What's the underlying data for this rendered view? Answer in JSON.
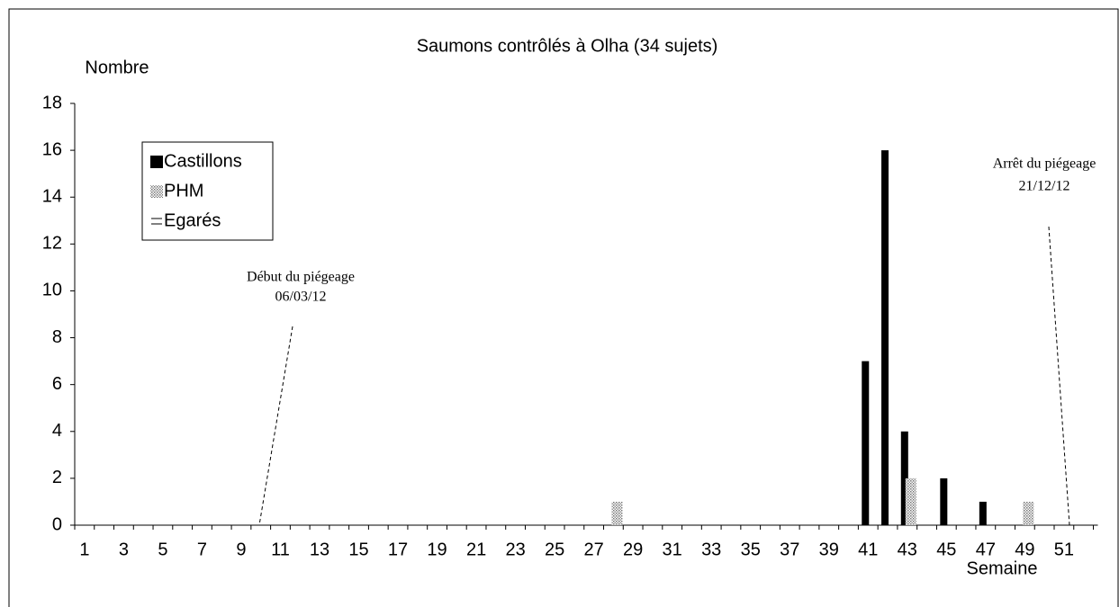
{
  "chart_data": {
    "type": "bar",
    "title": "Saumons contrôlés à Olha (34 sujets)",
    "y_label": "Nombre",
    "x_label": "Semaine",
    "categories": [
      1,
      null,
      3,
      null,
      5,
      null,
      7,
      null,
      9,
      null,
      11,
      null,
      13,
      null,
      15,
      null,
      17,
      null,
      19,
      null,
      21,
      null,
      23,
      null,
      25,
      null,
      27,
      null,
      29,
      null,
      31,
      null,
      33,
      null,
      35,
      null,
      37,
      null,
      39,
      null,
      41,
      null,
      43,
      null,
      45,
      null,
      47,
      null,
      49,
      null,
      51,
      null
    ],
    "series": [
      {
        "name": "Castillons",
        "color": "#000000",
        "values": [
          0,
          0,
          0,
          0,
          0,
          0,
          0,
          0,
          0,
          0,
          0,
          0,
          0,
          0,
          0,
          0,
          0,
          0,
          0,
          0,
          0,
          0,
          0,
          0,
          0,
          0,
          0,
          0,
          0,
          0,
          0,
          0,
          0,
          0,
          0,
          0,
          0,
          0,
          0,
          0,
          7,
          16,
          4,
          0,
          2,
          0,
          1,
          0,
          0,
          0,
          0,
          0
        ]
      },
      {
        "name": "PHM",
        "color": "#bbbbbb",
        "values": [
          0,
          0,
          0,
          0,
          0,
          0,
          0,
          0,
          0,
          0,
          0,
          0,
          0,
          0,
          0,
          0,
          0,
          0,
          0,
          0,
          0,
          0,
          0,
          0,
          0,
          0,
          0,
          1,
          0,
          0,
          0,
          0,
          0,
          0,
          0,
          0,
          0,
          0,
          0,
          0,
          0,
          0,
          2,
          0,
          0,
          0,
          0,
          0,
          1,
          0,
          0,
          0
        ]
      },
      {
        "name": "Egarés",
        "color": "#ffffff",
        "values": [
          0,
          0,
          0,
          0,
          0,
          0,
          0,
          0,
          0,
          0,
          0,
          0,
          0,
          0,
          0,
          0,
          0,
          0,
          0,
          0,
          0,
          0,
          0,
          0,
          0,
          0,
          0,
          0,
          0,
          0,
          0,
          0,
          0,
          0,
          0,
          0,
          0,
          0,
          0,
          0,
          0,
          0,
          0,
          0,
          0,
          0,
          0,
          0,
          0,
          0,
          0,
          0
        ]
      }
    ],
    "ylim": [
      0,
      18
    ],
    "yticks": [
      0,
      2,
      4,
      6,
      8,
      10,
      12,
      14,
      16,
      18
    ],
    "grid": false,
    "legend": "top-left",
    "annotations": [
      {
        "lines": [
          "Début du piégeage",
          "06/03/12"
        ]
      },
      {
        "lines": [
          "Arrêt du piégeage",
          "21/12/12"
        ]
      }
    ]
  }
}
